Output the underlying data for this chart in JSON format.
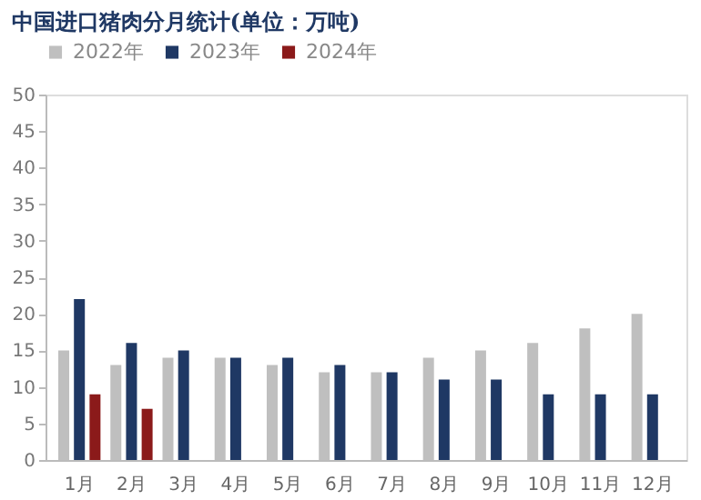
{
  "chart_data": {
    "type": "bar",
    "title": "中国进口猪肉分月统计(单位：万吨)",
    "categories": [
      "1月",
      "2月",
      "3月",
      "4月",
      "5月",
      "6月",
      "7月",
      "8月",
      "9月",
      "10月",
      "11月",
      "12月"
    ],
    "series": [
      {
        "name": "2022年",
        "color": "#bfbfbf",
        "values": [
          15,
          13,
          14,
          14,
          13,
          12,
          12,
          14,
          15,
          16,
          18,
          20
        ]
      },
      {
        "name": "2023年",
        "color": "#1f3864",
        "values": [
          22,
          16,
          15,
          14,
          14,
          13,
          12,
          11,
          11,
          9,
          9,
          9
        ]
      },
      {
        "name": "2024年",
        "color": "#8b1a1a",
        "values": [
          9,
          7,
          null,
          null,
          null,
          null,
          null,
          null,
          null,
          null,
          null,
          null
        ]
      }
    ],
    "ylim": [
      0,
      50
    ],
    "yticks": [
      0,
      5,
      10,
      15,
      20,
      25,
      30,
      35,
      40,
      45,
      50
    ],
    "grid": false,
    "legend": "top"
  }
}
